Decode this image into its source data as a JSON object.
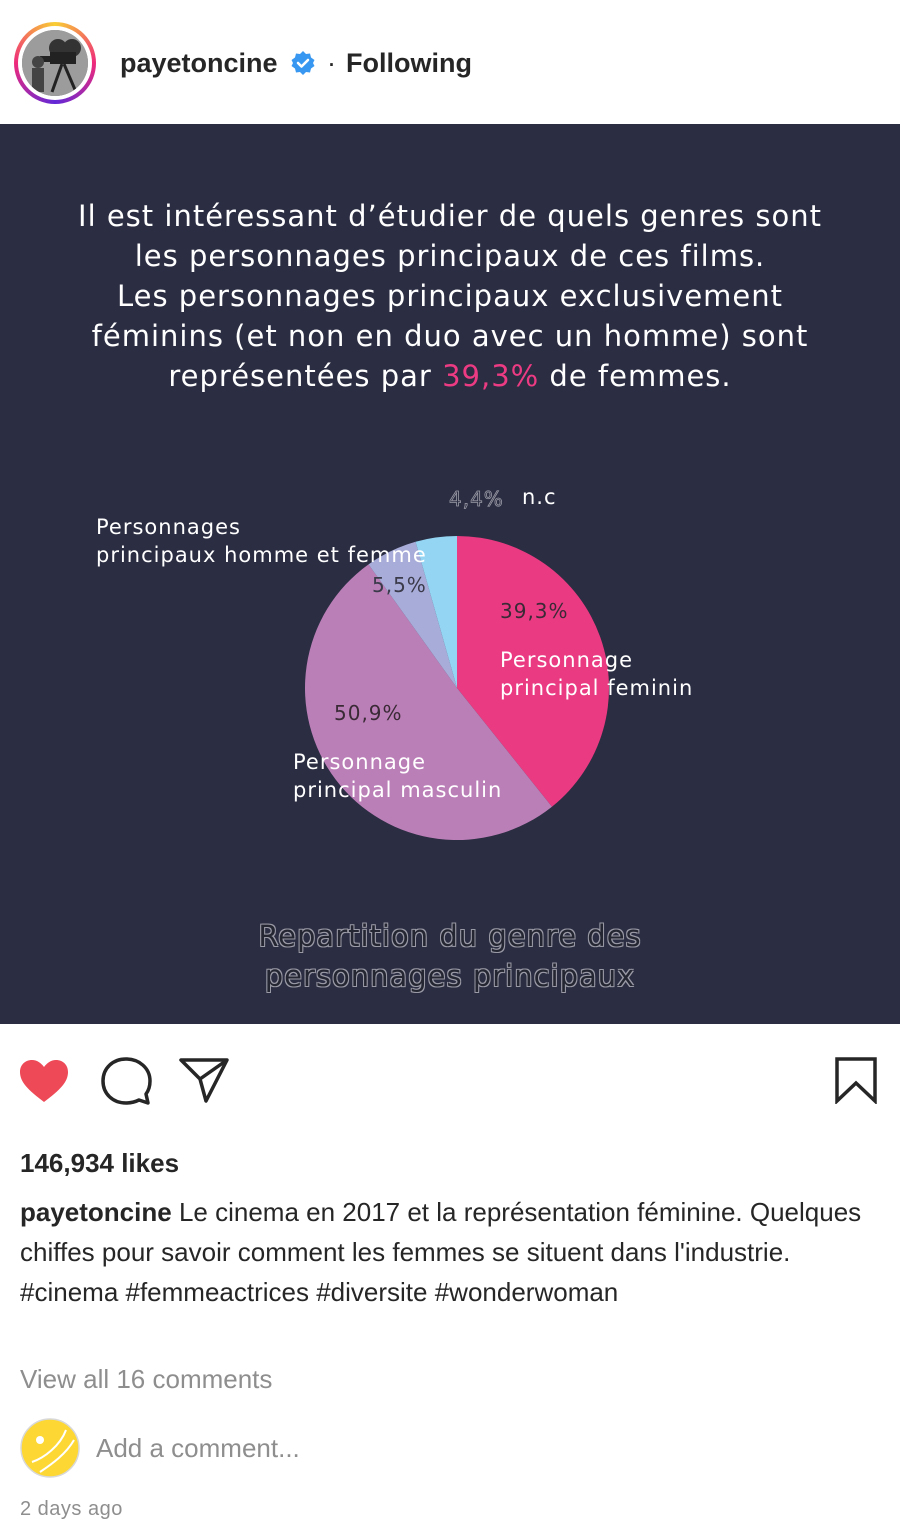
{
  "header": {
    "username": "payetoncine",
    "separator": "·",
    "follow_status": "Following",
    "verified_icon": "verified-badge-icon",
    "verified_color": "#3897f0"
  },
  "post": {
    "background": "#2b2d42",
    "lines": [
      "Il est intéressant d’étudier de quels genres sont",
      "les personnages principaux de ces films.",
      "Les personnages principaux exclusivement",
      "féminins (et non en duo avec un homme) sont"
    ],
    "last_line_before": "représentées par ",
    "last_line_highlight": "39,3%",
    "last_line_after": " de femmes.",
    "highlight_color": "#ec3b83",
    "chart_caption_line1": "Repartition du genre des",
    "chart_caption_line2": "personnages principaux"
  },
  "chart_data": {
    "type": "pie",
    "start": "top, clockwise",
    "slices": [
      {
        "value_label": "39,3%",
        "value": 39.3,
        "label_lines": [
          "Personnage",
          "principal feminin"
        ],
        "color": "#ea3a82"
      },
      {
        "value_label": "50,9%",
        "value": 50.9,
        "label_lines": [
          "Personnage",
          "principal masculin"
        ],
        "color": "#bb7fb8"
      },
      {
        "value_label": "5,5%",
        "value": 5.5,
        "label_lines": [
          "Personnages",
          "principaux homme et femme"
        ],
        "color": "#a8acd9"
      },
      {
        "value_label": "4,4%",
        "value": 4.4,
        "label_lines": [
          "n.c"
        ],
        "color": "#94d5f3"
      }
    ]
  },
  "actions": {
    "like_icon": "heart-icon",
    "like_color": "#ed4956",
    "comment_icon": "comment-icon",
    "share_icon": "share-icon",
    "save_icon": "bookmark-icon"
  },
  "likes": "146,934 likes",
  "caption": {
    "username": "payetoncine",
    "text": "Le cinema en 2017 et la représentation féminine. Quelques chiffes pour savoir comment les femmes se situent dans l'industrie.",
    "hashtags": "#cinema #femmeactrices #diversite #wonderwoman"
  },
  "view_comments": "View all 16 comments",
  "comment_input": {
    "placeholder": "Add a comment..."
  },
  "timestamp": "2 days ago"
}
